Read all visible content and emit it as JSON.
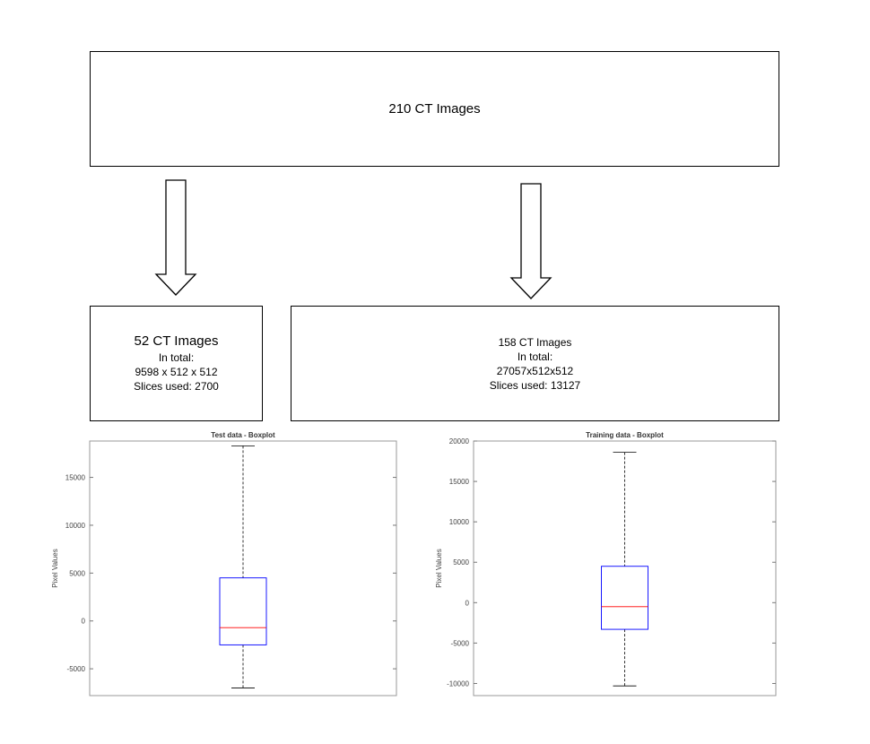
{
  "top": {
    "title": "210 CT Images"
  },
  "left": {
    "title": "52 CT Images",
    "lines": [
      "In total:",
      "9598 x 512 x 512",
      "Slices used: 2700"
    ]
  },
  "right": {
    "lines": [
      "158 CT Images",
      "In total:",
      "27057x512x512",
      "Slices used: 13127"
    ]
  },
  "colors": {
    "box": "#0000ff",
    "median": "#ff0000",
    "whisker": "#000000"
  },
  "chart_data": [
    {
      "type": "boxplot",
      "title": "Test data - Boxplot",
      "ylabel": "Pixel Values",
      "ylim": [
        -7800,
        18800
      ],
      "yticks": [
        -5000,
        0,
        5000,
        10000,
        15000
      ],
      "ytick_labels": [
        "-5000",
        "0",
        "5000",
        "10000",
        "15000"
      ],
      "box": {
        "min": -7000,
        "q1": -2500,
        "median": -700,
        "q3": 4500,
        "max": 18300
      }
    },
    {
      "type": "boxplot",
      "title": "Training data - Boxplot",
      "ylabel": "Pixel Values",
      "ylim": [
        -11500,
        20000
      ],
      "yticks": [
        -10000,
        -5000,
        0,
        5000,
        10000,
        15000,
        20000
      ],
      "ytick_labels": [
        "-10000",
        "-5000",
        "0",
        "5000",
        "10000",
        "15000",
        "20000"
      ],
      "box": {
        "min": -10300,
        "q1": -3300,
        "median": -500,
        "q3": 4500,
        "max": 18600
      }
    }
  ]
}
